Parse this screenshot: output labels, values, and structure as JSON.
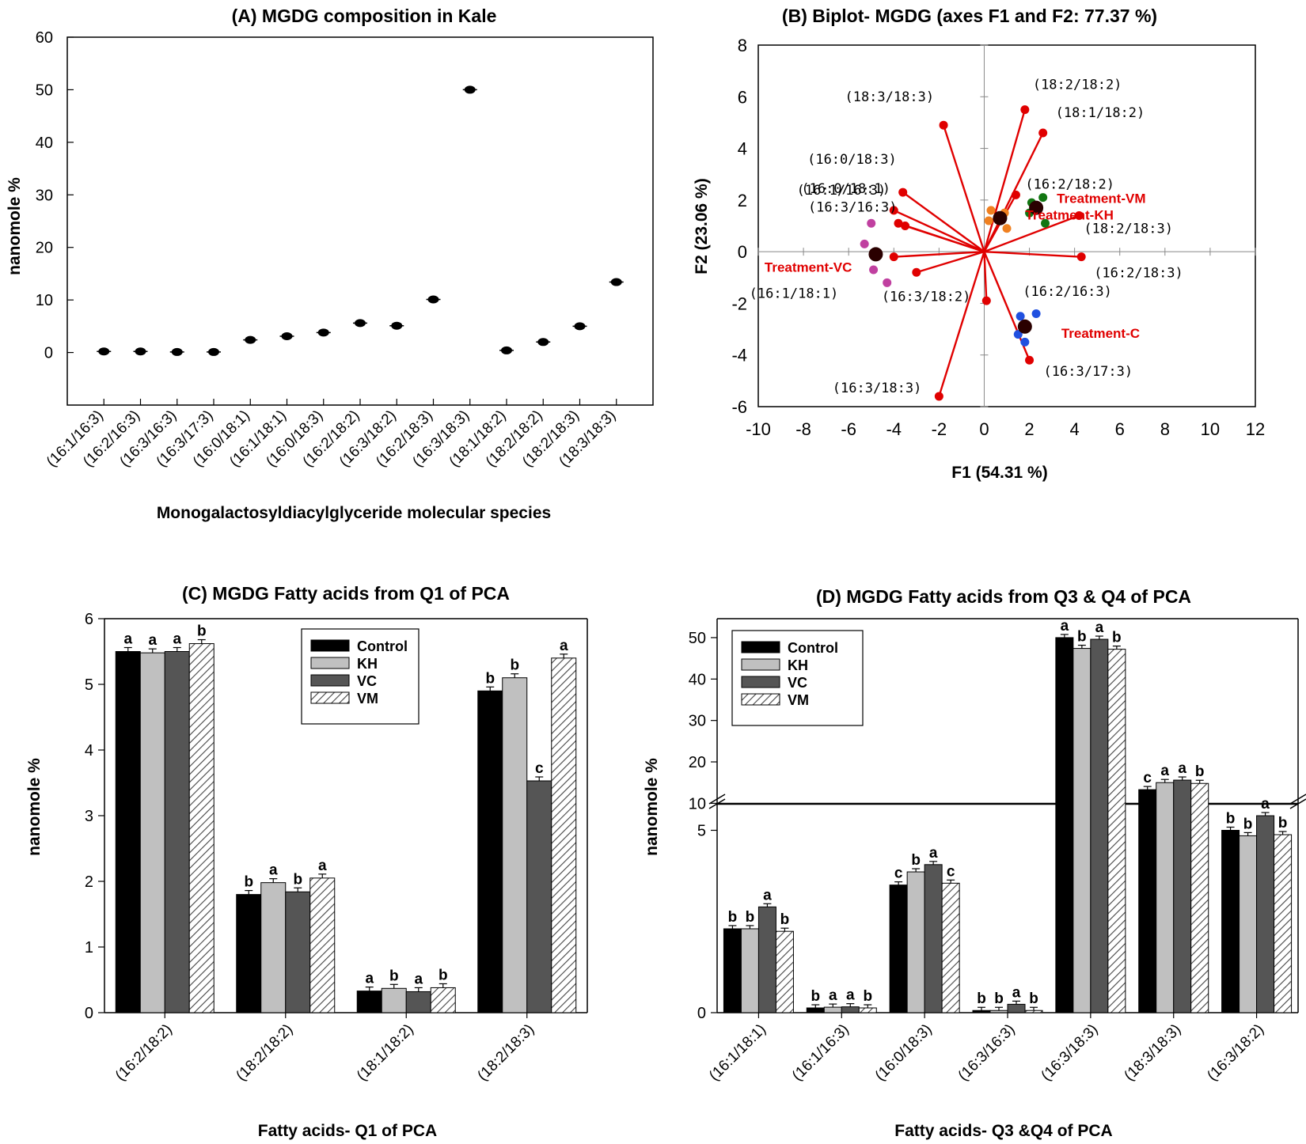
{
  "chart_data": [
    {
      "panel": "A",
      "type": "scatter",
      "title": "(A) MGDG composition in Kale",
      "xlabel": "Monogalactosyldiacylglyceride molecular species",
      "ylabel": "nanomole %",
      "ylim": [
        -10,
        60
      ],
      "yticks": [
        0,
        10,
        20,
        30,
        40,
        50,
        60
      ],
      "categories": [
        "(16:1/16:3)",
        "(16:2/16:3)",
        "(16:3/16:3)",
        "(16:3/17:3)",
        "(16:0/18:1)",
        "(16:1/18:1)",
        "(16:0/18:3)",
        "(16:2/18:2)",
        "(16:3/18:2)",
        "(16:2/18:3)",
        "(16:3/18:3)",
        "(18:1/18:2)",
        "(18:2/18:2)",
        "(18:2/18:3)",
        "(18:3/18:3)"
      ],
      "values": [
        0.2,
        0.2,
        0.1,
        0.1,
        2.4,
        3.1,
        3.8,
        5.6,
        5.1,
        10.1,
        50.0,
        0.4,
        2.0,
        5.0,
        13.4
      ]
    },
    {
      "panel": "B",
      "type": "scatter",
      "title": "(B) Biplot- MGDG (axes F1 and F2: 77.37 %)",
      "xlabel": "F1 (54.31 %)",
      "ylabel": "F2 (23.06 %)",
      "xlim": [
        -10,
        12
      ],
      "ylim": [
        -6,
        8
      ],
      "xticks": [
        -10,
        -8,
        -6,
        -4,
        -2,
        0,
        2,
        4,
        6,
        8,
        10,
        12
      ],
      "yticks": [
        -6,
        -4,
        -2,
        0,
        2,
        4,
        6,
        8
      ],
      "loadings": [
        {
          "label": "(18:3/18:3)",
          "x": -1.8,
          "y": 4.9
        },
        {
          "label": "(18:2/18:2)",
          "x": 1.8,
          "y": 5.5
        },
        {
          "label": "(18:1/18:2)",
          "x": 2.6,
          "y": 4.6
        },
        {
          "label": "(16:0/18:3)",
          "x": -3.6,
          "y": 2.3
        },
        {
          "label": "(16:1/16:3)",
          "x": -4.0,
          "y": 1.6
        },
        {
          "label": "(16:0/18:1)",
          "x": -3.8,
          "y": 1.1
        },
        {
          "label": "(16:3/16:3)",
          "x": -3.5,
          "y": 1.0
        },
        {
          "label": "(16:2/18:2)",
          "x": 1.4,
          "y": 2.2
        },
        {
          "label": "(18:2/18:3)",
          "x": 4.2,
          "y": 1.4
        },
        {
          "label": "(16:2/18:3)",
          "x": 4.3,
          "y": -0.2
        },
        {
          "label": "(16:1/18:1)",
          "x": -4.0,
          "y": -0.2
        },
        {
          "label": "(16:3/18:2)",
          "x": -3.0,
          "y": -0.8
        },
        {
          "label": "(16:2/16:3)",
          "x": 0.1,
          "y": -1.9
        },
        {
          "label": "(16:3/17:3)",
          "x": 2.0,
          "y": -4.2
        },
        {
          "label": "(16:3/18:3)",
          "x": -2.0,
          "y": -5.6
        }
      ],
      "groups": [
        {
          "name": "Treatment-VM",
          "color": "#127612",
          "centroid": {
            "x": 2.3,
            "y": 1.7
          },
          "points": [
            {
              "x": 2.1,
              "y": 1.9
            },
            {
              "x": 2.6,
              "y": 2.1
            },
            {
              "x": 2.0,
              "y": 1.5
            },
            {
              "x": 2.7,
              "y": 1.1
            }
          ]
        },
        {
          "name": "Treatment-KH",
          "color": "#f08020",
          "centroid": {
            "x": 0.7,
            "y": 1.3
          },
          "points": [
            {
              "x": 0.3,
              "y": 1.6
            },
            {
              "x": 0.9,
              "y": 1.5
            },
            {
              "x": 0.2,
              "y": 1.2
            },
            {
              "x": 1.0,
              "y": 0.9
            }
          ]
        },
        {
          "name": "Treatment-VC",
          "color": "#c040a0",
          "centroid": {
            "x": -4.8,
            "y": -0.1
          },
          "points": [
            {
              "x": -5.0,
              "y": 1.1
            },
            {
              "x": -5.3,
              "y": 0.3
            },
            {
              "x": -4.9,
              "y": -0.7
            },
            {
              "x": -4.3,
              "y": -1.2
            }
          ]
        },
        {
          "name": "Treatment-C",
          "color": "#2050e0",
          "centroid": {
            "x": 1.8,
            "y": -2.9
          },
          "points": [
            {
              "x": 1.6,
              "y": -2.5
            },
            {
              "x": 2.3,
              "y": -2.4
            },
            {
              "x": 1.5,
              "y": -3.2
            },
            {
              "x": 1.8,
              "y": -3.5
            }
          ]
        }
      ]
    },
    {
      "panel": "C",
      "type": "bar",
      "title": "(C) MGDG Fatty acids from Q1 of PCA",
      "xlabel": "Fatty acids- Q1 of PCA",
      "ylabel": "nanomole %",
      "ylim": [
        0,
        6
      ],
      "yticks": [
        0,
        1,
        2,
        3,
        4,
        5,
        6
      ],
      "categories": [
        "(16:2/18:2)",
        "(18:2/18:2)",
        "(18:1/18:2)",
        "(18:2/18:3)"
      ],
      "series": [
        {
          "name": "Control",
          "values": [
            5.5,
            1.8,
            0.33,
            4.9
          ],
          "letters": [
            "a",
            "b",
            "a",
            "b"
          ]
        },
        {
          "name": "KH",
          "values": [
            5.48,
            1.98,
            0.37,
            5.1
          ],
          "letters": [
            "a",
            "a",
            "b",
            "b"
          ]
        },
        {
          "name": "VC",
          "values": [
            5.5,
            1.84,
            0.32,
            3.53
          ],
          "letters": [
            "a",
            "b",
            "a",
            "c"
          ]
        },
        {
          "name": "VM",
          "values": [
            5.62,
            2.05,
            0.38,
            5.4
          ],
          "letters": [
            "b",
            "a",
            "b",
            "a"
          ]
        }
      ]
    },
    {
      "panel": "D",
      "type": "bar",
      "title": "(D) MGDG Fatty acids from Q3 & Q4 of PCA",
      "xlabel": "Fatty acids- Q3 &Q4 of PCA",
      "ylabel": "nanomole %",
      "axis_break": [
        5.9,
        9.5
      ],
      "yticks": [
        0,
        5,
        10,
        20,
        30,
        40,
        50
      ],
      "categories": [
        "(16:1/18:1)",
        "(16:1/16:3)",
        "(16:0/18:3)",
        "(16:3/16:3)",
        "(16:3/18:3)",
        "(18:3/18:3)",
        "(16:3/18:2)"
      ],
      "series": [
        {
          "name": "Control",
          "values": [
            2.3,
            0.13,
            3.5,
            0.06,
            50.0,
            13.3,
            5.0
          ],
          "letters": [
            "b",
            "b",
            "c",
            "b",
            "a",
            "c",
            "b"
          ]
        },
        {
          "name": "KH",
          "values": [
            2.3,
            0.15,
            3.86,
            0.06,
            47.4,
            15.0,
            4.85
          ],
          "letters": [
            "b",
            "a",
            "b",
            "b",
            "b",
            "a",
            "b"
          ]
        },
        {
          "name": "VC",
          "values": [
            2.9,
            0.16,
            4.06,
            0.23,
            49.6,
            15.6,
            5.4
          ],
          "letters": [
            "a",
            "a",
            "a",
            "a",
            "a",
            "a",
            "a"
          ]
        },
        {
          "name": "VM",
          "values": [
            2.23,
            0.13,
            3.55,
            0.06,
            47.2,
            14.8,
            4.88
          ],
          "letters": [
            "b",
            "b",
            "c",
            "b",
            "b",
            "b",
            "b"
          ]
        }
      ]
    }
  ]
}
